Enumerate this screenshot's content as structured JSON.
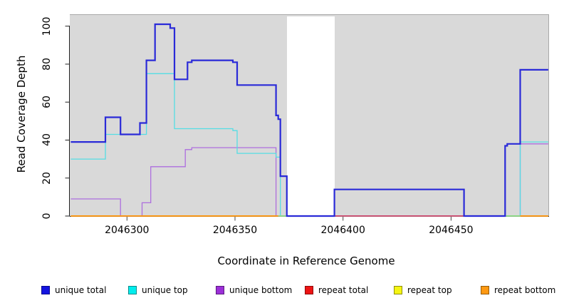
{
  "chart_data": {
    "type": "line",
    "subtype": "step",
    "title": "",
    "xlabel": "Coordinate in Reference Genome",
    "ylabel": "Read Coverage Depth",
    "xlim": [
      2046274,
      2046495
    ],
    "ylim": [
      0,
      106
    ],
    "grid": false,
    "plot_background": "#d9d9d9",
    "masked_region": {
      "x0": 2046374,
      "x1": 2046396,
      "color": "#ffffff"
    },
    "legend_position": "bottom",
    "x_ticks": [
      {
        "label": "2046300",
        "value": 2046300
      },
      {
        "label": "2046350",
        "value": 2046350
      },
      {
        "label": "2046400",
        "value": 2046400
      },
      {
        "label": "2046450",
        "value": 2046450
      }
    ],
    "y_ticks": [
      {
        "label": "0",
        "value": 0
      },
      {
        "label": "20",
        "value": 20
      },
      {
        "label": "40",
        "value": 40
      },
      {
        "label": "60",
        "value": 60
      },
      {
        "label": "80",
        "value": 80
      },
      {
        "label": "100",
        "value": 100
      }
    ],
    "series": [
      {
        "name": "repeat total",
        "color": "#e01414",
        "points": [
          [
            2046274,
            0
          ],
          [
            2046495,
            0
          ]
        ]
      },
      {
        "name": "repeat top",
        "color": "#f0f014",
        "points": [
          [
            2046274,
            0
          ],
          [
            2046495,
            0
          ]
        ]
      },
      {
        "name": "repeat bottom",
        "color": "#ff9912",
        "points": [
          [
            2046274,
            0
          ],
          [
            2046495,
            0
          ]
        ]
      },
      {
        "name": "unique bottom",
        "color": "#ad6ede",
        "points": [
          [
            2046274,
            9
          ],
          [
            2046297,
            0
          ],
          [
            2046307,
            7
          ],
          [
            2046311,
            26
          ],
          [
            2046327,
            35
          ],
          [
            2046330,
            36
          ],
          [
            2046369,
            0
          ],
          [
            2046482,
            38
          ],
          [
            2046495,
            38
          ]
        ]
      },
      {
        "name": "unique top",
        "color": "#55dde4",
        "points": [
          [
            2046274,
            30
          ],
          [
            2046290,
            43
          ],
          [
            2046309,
            75
          ],
          [
            2046322,
            46
          ],
          [
            2046349,
            45
          ],
          [
            2046351,
            33
          ],
          [
            2046369,
            31
          ],
          [
            2046371,
            0
          ],
          [
            2046482,
            39
          ],
          [
            2046495,
            39
          ]
        ]
      },
      {
        "name": "unique total",
        "color": "#2a2ad8",
        "points": [
          [
            2046274,
            39
          ],
          [
            2046290,
            52
          ],
          [
            2046297,
            43
          ],
          [
            2046306,
            49
          ],
          [
            2046309,
            82
          ],
          [
            2046313,
            101
          ],
          [
            2046320,
            99
          ],
          [
            2046322,
            72
          ],
          [
            2046328,
            81
          ],
          [
            2046330,
            82
          ],
          [
            2046349,
            81
          ],
          [
            2046351,
            69
          ],
          [
            2046369,
            53
          ],
          [
            2046370,
            51
          ],
          [
            2046371,
            21
          ],
          [
            2046374,
            0
          ],
          [
            2046396,
            14
          ],
          [
            2046456,
            0
          ],
          [
            2046475,
            37
          ],
          [
            2046476,
            38
          ],
          [
            2046482,
            77
          ],
          [
            2046495,
            77
          ]
        ]
      }
    ],
    "baseline_segments": [
      {
        "x0": 2046274,
        "x1": 2046370,
        "color": "#ff9912"
      },
      {
        "x0": 2046370,
        "x1": 2046374,
        "color": "#8bdc86"
      },
      {
        "x0": 2046374,
        "x1": 2046396,
        "color": "#5a50dd"
      },
      {
        "x0": 2046396,
        "x1": 2046456,
        "color": "#cf4a72"
      },
      {
        "x0": 2046456,
        "x1": 2046475,
        "color": "#5a50dd"
      },
      {
        "x0": 2046475,
        "x1": 2046482,
        "color": "#8bdc86"
      },
      {
        "x0": 2046482,
        "x1": 2046495,
        "color": "#ff9912"
      }
    ],
    "legend": [
      {
        "label": "unique total",
        "fill": "#1414e0",
        "border": "#0b0b8f"
      },
      {
        "label": "unique top",
        "fill": "#00eded",
        "border": "#0c8b8b"
      },
      {
        "label": "unique bottom",
        "fill": "#9c2fd8",
        "border": "#5b1b7e"
      },
      {
        "label": "repeat total",
        "fill": "#ed1414",
        "border": "#8f0b0b"
      },
      {
        "label": "repeat top",
        "fill": "#f5f513",
        "border": "#8f8f0b"
      },
      {
        "label": "repeat bottom",
        "fill": "#ff9912",
        "border": "#965c0b"
      }
    ]
  }
}
